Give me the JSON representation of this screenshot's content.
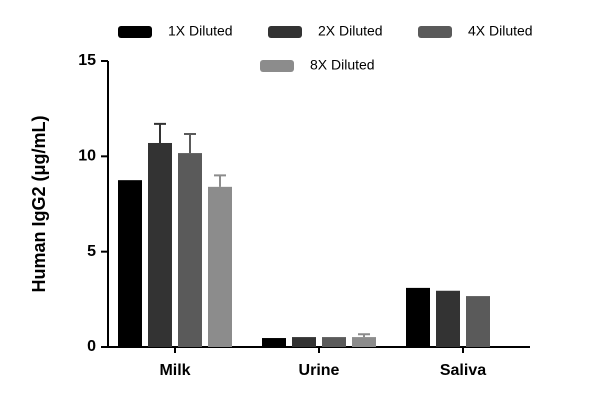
{
  "chart_data": {
    "type": "bar",
    "y_label": "Human IgG2 (μg/mL)",
    "categories": [
      "Milk",
      "Urine",
      "Saliva"
    ],
    "series": [
      {
        "name": "1X Diluted",
        "color": "#000000",
        "values": [
          8.75,
          0.47,
          3.1
        ],
        "errors": [
          null,
          null,
          null
        ]
      },
      {
        "name": "2X Diluted",
        "color": "#333333",
        "values": [
          10.7,
          0.52,
          2.95
        ],
        "errors": [
          1.0,
          null,
          null
        ]
      },
      {
        "name": "4X Diluted",
        "color": "#5a5a5a",
        "values": [
          10.17,
          0.52,
          2.67
        ],
        "errors": [
          1.0,
          null,
          null
        ]
      },
      {
        "name": "8X Diluted",
        "color": "#8c8c8c",
        "values": [
          8.4,
          0.52,
          null
        ],
        "errors": [
          0.6,
          0.15,
          null
        ]
      }
    ],
    "ylim": [
      0,
      15
    ],
    "yticks": [
      0,
      5,
      10,
      15
    ]
  }
}
